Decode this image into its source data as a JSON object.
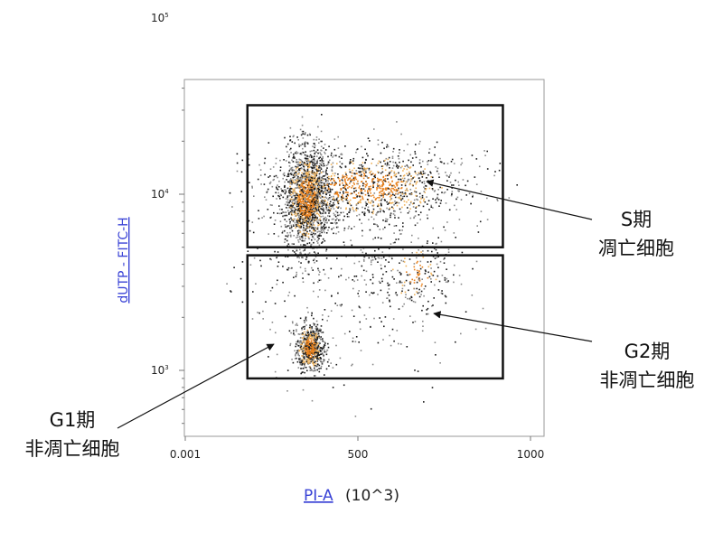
{
  "chart_data": {
    "type": "scatter",
    "x_axis": {
      "label_link": "PI-A",
      "label_unit": " (10^3)",
      "range": [
        0.001,
        1000
      ],
      "ticks": [
        {
          "value": 0.001,
          "label": "0.001"
        },
        {
          "value": 500,
          "label": "500"
        },
        {
          "value": 1000,
          "label": "1000"
        }
      ]
    },
    "y_axis": {
      "label": "dUTP - FITC-H",
      "scale": "log",
      "range": [
        500,
        160000
      ],
      "ticks": [
        {
          "value": 1000,
          "base": "10",
          "exp": "3"
        },
        {
          "value": 10000,
          "base": "10",
          "exp": "4"
        },
        {
          "value": 100000,
          "base": "10",
          "exp": "5"
        }
      ]
    },
    "point_colors": {
      "dense": "#e8821e",
      "mid": "#1a1a1a",
      "sparse": "#8a8a8a",
      "light": "#f0b35a"
    },
    "clusters": [
      {
        "name": "G1",
        "x_center": 360,
        "x_sd": 20,
        "y_log_center": 3.13,
        "y_log_sd": 0.07,
        "n": 700
      },
      {
        "name": "S-dense",
        "x_center": 350,
        "x_sd": 32,
        "y_log_center": 3.98,
        "y_log_sd": 0.14,
        "n": 1600
      },
      {
        "name": "S-band",
        "x_center": 520,
        "x_sd": 140,
        "y_log_center": 4.05,
        "y_log_sd": 0.1,
        "n": 1200
      },
      {
        "name": "G2",
        "x_center": 670,
        "x_sd": 45,
        "y_log_center": 3.55,
        "y_log_sd": 0.09,
        "n": 150
      },
      {
        "name": "scatter",
        "x_center": 480,
        "x_sd": 160,
        "y_log_center": 3.6,
        "y_log_sd": 0.3,
        "n": 500
      }
    ],
    "gates": [
      {
        "name": "S",
        "x_range": [
          180,
          920
        ],
        "y_range": [
          5000,
          32000
        ]
      },
      {
        "name": "nonapoptotic",
        "x_range": [
          180,
          920
        ],
        "y_range": [
          900,
          4500
        ]
      }
    ],
    "annotations": [
      {
        "name": "S",
        "lines": [
          "S期",
          "凋亡细胞"
        ]
      },
      {
        "name": "G2",
        "lines": [
          "G2期",
          "非凋亡细胞"
        ]
      },
      {
        "name": "G1",
        "lines": [
          "G1期",
          "非凋亡细胞"
        ]
      }
    ],
    "grid": false
  }
}
